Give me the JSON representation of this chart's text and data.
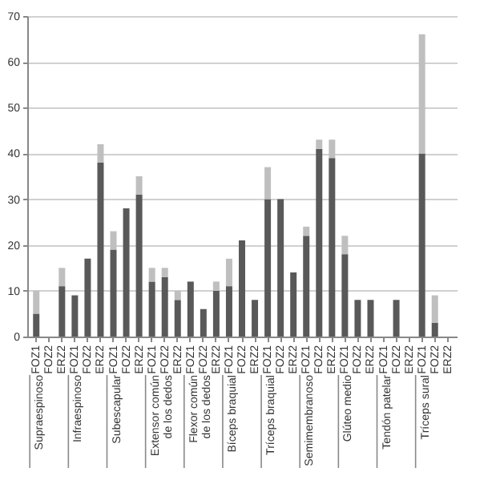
{
  "chart_data": {
    "type": "bar",
    "stacked": true,
    "categories": [
      "FOZ1",
      "FOZ2",
      "ERZ2",
      "FOZ1",
      "FOZ2",
      "ERZ2",
      "FOZ1",
      "FOZ2",
      "ERZ2",
      "FOZ1",
      "FOZ2",
      "ERZ2",
      "FOZ1",
      "FOZ2",
      "ERZ2",
      "FOZ1",
      "FOZ2",
      "ERZ2",
      "FOZ1",
      "FOZ2",
      "ERZ2",
      "FOZ1",
      "FOZ2",
      "ERZ2",
      "FOZ1",
      "FOZ2",
      "ERZ2",
      "FOZ1",
      "FOZ2",
      "ERZ2",
      "FOZ1",
      "FOZ2",
      "ERZ2"
    ],
    "series": [
      {
        "color": "#595959",
        "values": [
          5,
          0,
          11,
          9,
          17,
          38,
          19,
          28,
          31,
          12,
          13,
          8,
          12,
          6,
          10,
          11,
          21,
          8,
          30,
          30,
          14,
          22,
          41,
          39,
          18,
          8,
          8,
          0,
          8,
          0,
          40,
          3,
          0
        ]
      },
      {
        "color": "#bfbfbf",
        "values": [
          5,
          0,
          4,
          0,
          0,
          4,
          4,
          0,
          4,
          3,
          2,
          2,
          0,
          0,
          2,
          6,
          0,
          0,
          7,
          0,
          0,
          2,
          2,
          4,
          4,
          0,
          0,
          0,
          0,
          0,
          26,
          6,
          0
        ]
      }
    ],
    "annotations": [
      "Supraespinoso",
      "Infraespinoso",
      "Subescapular",
      "Extensor común de los dedos",
      "Flexor común de los dedos",
      "Bíceps braquial",
      "Tríceps braquial",
      "Semimembranoso",
      "Glúteo medio",
      "Tendón patelar",
      "Tríceps sural"
    ],
    "ylim": [
      0,
      70
    ],
    "yticks": [
      0,
      10,
      20,
      30,
      40,
      50,
      60,
      70
    ],
    "grid": "y"
  }
}
